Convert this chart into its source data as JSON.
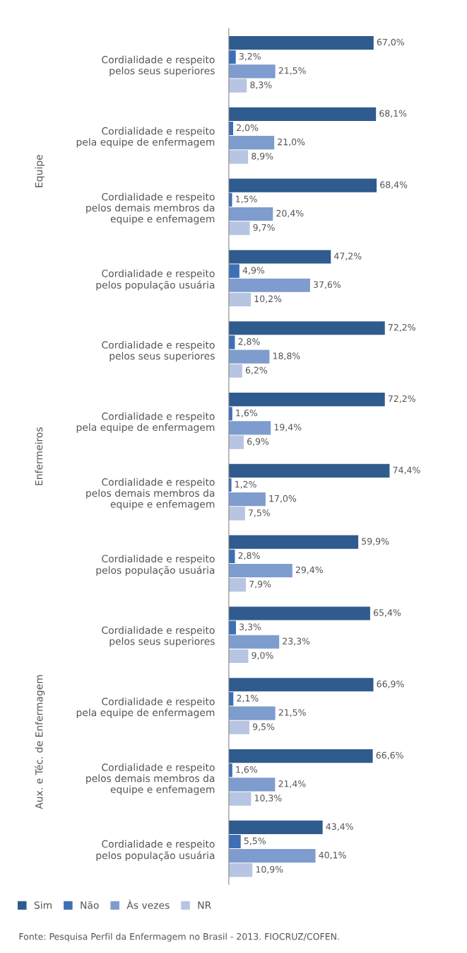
{
  "chart_data": {
    "type": "bar",
    "orientation": "horizontal",
    "categories": [
      "Cordialidade e respeito\npelos seus superiores",
      "Cordialidade e respeito\npela equipe de enfermagem",
      "Cordialidade e respeito\npelos demais membros da\nequipe e enfemagem",
      "Cordialidade e respeito\npelos população usuária",
      "Cordialidade e respeito\npelos seus superiores",
      "Cordialidade e respeito\npela equipe de enfermagem",
      "Cordialidade e respeito\npelos demais membros da\nequipe e enfemagem",
      "Cordialidade e respeito\npelos população usuária",
      "Cordialidade e respeito\npelos seus superiores",
      "Cordialidade e respeito\npela equipe de enfermagem",
      "Cordialidade e respeito\npelos demais membros da\nequipe e enfemagem",
      "Cordialidade e respeito\npelos população usuária"
    ],
    "series": [
      {
        "name": "Sim",
        "color": "#2f5b8e",
        "values": [
          67.0,
          68.1,
          68.4,
          47.2,
          72.2,
          72.2,
          74.4,
          59.9,
          65.4,
          66.9,
          66.6,
          43.4
        ],
        "value_labels": [
          "67,0%",
          "68,1%",
          "68,4%",
          "47,2%",
          "72,2%",
          "72,2%",
          "74,4%",
          "59,9%",
          "65,4%",
          "66,9%",
          "66,6%",
          "43,4%"
        ]
      },
      {
        "name": "Não",
        "color": "#3d6fb5",
        "values": [
          3.2,
          2.0,
          1.5,
          4.9,
          2.8,
          1.6,
          1.2,
          2.8,
          3.3,
          2.1,
          1.6,
          5.5
        ],
        "value_labels": [
          "3,2%",
          "2,0%",
          "1,5%",
          "4,9%",
          "2,8%",
          "1,6%",
          "1,2%",
          "2,8%",
          "3,3%",
          "2,1%",
          "1,6%",
          "5,5%"
        ]
      },
      {
        "name": "Às vezes",
        "color": "#7e9ccd",
        "values": [
          21.5,
          21.0,
          20.4,
          37.6,
          18.8,
          19.4,
          17.0,
          29.4,
          23.3,
          21.5,
          21.4,
          40.1
        ],
        "value_labels": [
          "21,5%",
          "21,0%",
          "20,4%",
          "37,6%",
          "18,8%",
          "19,4%",
          "17,0%",
          "29,4%",
          "23,3%",
          "21,5%",
          "21,4%",
          "40,1%"
        ]
      },
      {
        "name": "NR",
        "color": "#b7c5e2",
        "values": [
          8.3,
          8.9,
          9.7,
          10.2,
          6.2,
          6.9,
          7.5,
          7.9,
          9.0,
          9.5,
          10.3,
          10.9
        ],
        "value_labels": [
          "8,3%",
          "8,9%",
          "9,7%",
          "10,2%",
          "6,2%",
          "6,9%",
          "7,5%",
          "7,9%",
          "9,0%",
          "9,5%",
          "10,3%",
          "10,9%"
        ]
      }
    ],
    "annotations": [
      "Equipe",
      "Enfermeiros",
      "Aux. e Téc. de Enfermagem",
      "Fonte: Pesquisa Perfil da Enfermagem no Brasil - 2013. FIOCRUZ/COFEN."
    ],
    "legend": "bottom left",
    "grid": false
  }
}
